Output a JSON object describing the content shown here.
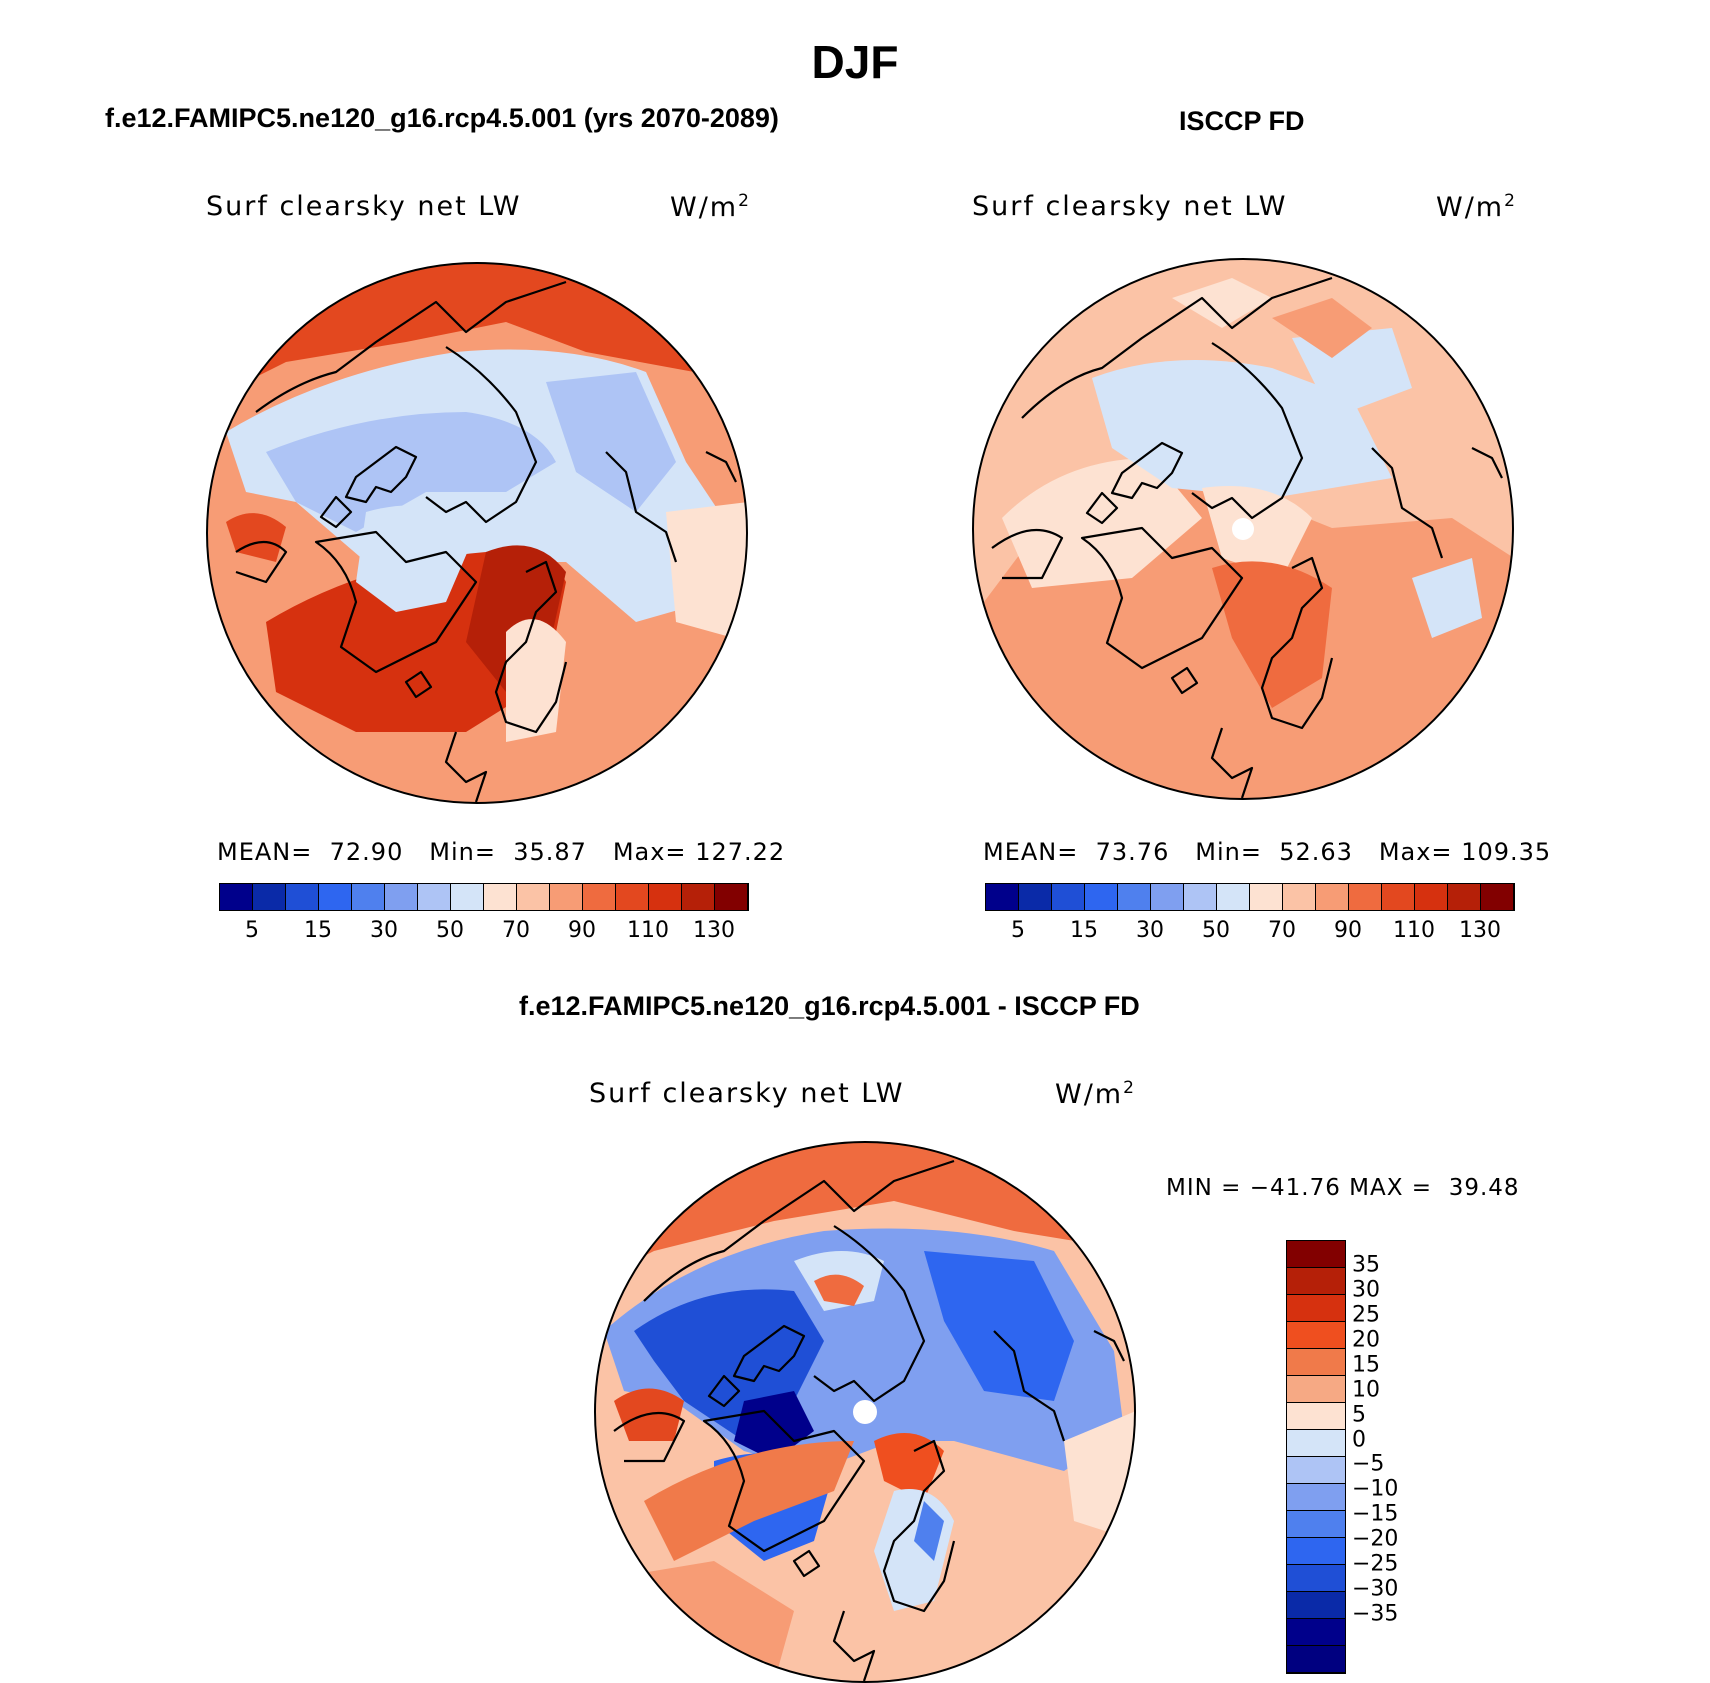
{
  "page": {
    "title": "DJF",
    "colors": {
      "background": "#ffffff",
      "text": "#000000"
    }
  },
  "panel_left": {
    "case": "f.e12.FAMIPC5.ne120_g16.rcp4.5.001 (yrs 2070-2089)",
    "variable": "Surf clearsky net LW",
    "units_base": "W/m",
    "units_exp": "2",
    "stats": {
      "mean_label": "MEAN=",
      "mean": "72.90",
      "min_label": "Min=",
      "min": "35.87",
      "max_label": "Max=",
      "max": "127.22"
    },
    "colorbar_ticks": [
      "5",
      "15",
      "30",
      "50",
      "70",
      "90",
      "110",
      "130"
    ]
  },
  "panel_right": {
    "case": "ISCCP FD",
    "variable": "Surf clearsky net LW",
    "units_base": "W/m",
    "units_exp": "2",
    "stats": {
      "mean_label": "MEAN=",
      "mean": "73.76",
      "min_label": "Min=",
      "min": "52.63",
      "max_label": "Max=",
      "max": "109.35"
    },
    "colorbar_ticks": [
      "5",
      "15",
      "30",
      "50",
      "70",
      "90",
      "110",
      "130"
    ]
  },
  "panel_diff": {
    "case": "f.e12.FAMIPC5.ne120_g16.rcp4.5.001 - ISCCP FD",
    "variable": "Surf clearsky net LW",
    "units_base": "W/m",
    "units_exp": "2",
    "minmax": "MIN = −41.76 MAX =  39.48",
    "colorbar_ticks": [
      "35",
      "30",
      "25",
      "20",
      "15",
      "10",
      "5",
      "0",
      "−5",
      "−10",
      "−15",
      "−20",
      "−25",
      "−30",
      "−35"
    ]
  },
  "palettes": {
    "absolute": [
      "#00008b",
      "#0a2aa8",
      "#1f4fd6",
      "#2e66f0",
      "#4f80ee",
      "#7f9ff0",
      "#aec4f5",
      "#d4e4f8",
      "#fde2d2",
      "#fbc3a6",
      "#f79c75",
      "#ef6b3f",
      "#e3481f",
      "#d6310f",
      "#b52008",
      "#820000"
    ],
    "diff": [
      "#820000",
      "#b52008",
      "#d6310f",
      "#ef4f1f",
      "#f07a4a",
      "#f6a984",
      "#fde2d2",
      "#d4e4f8",
      "#aec4f5",
      "#7f9ff0",
      "#4f80ee",
      "#2e66f0",
      "#1f4fd6",
      "#0a2aa8",
      "#00008b",
      "#000080"
    ]
  }
}
